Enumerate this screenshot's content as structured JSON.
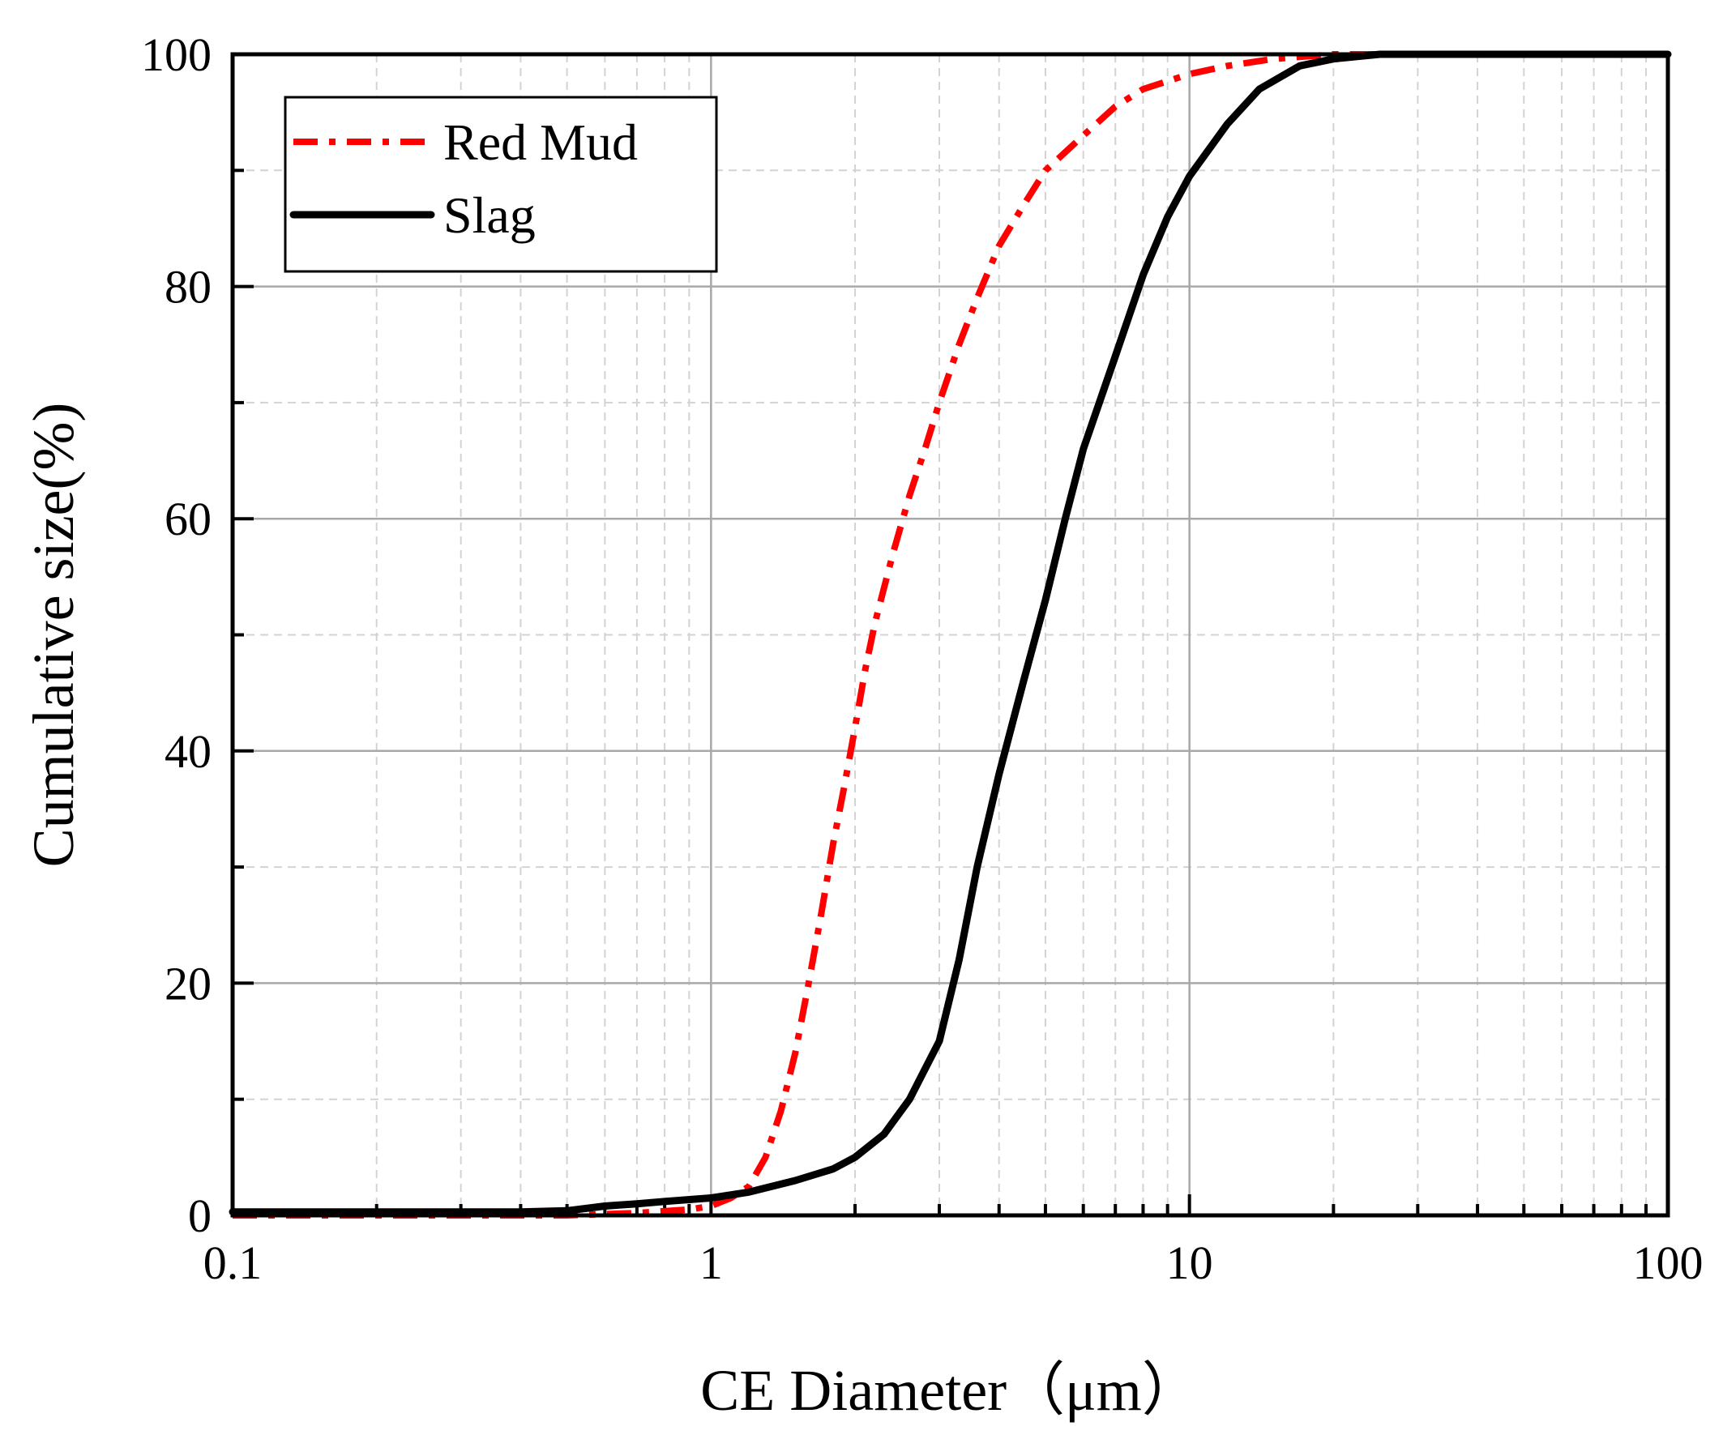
{
  "chart_data": {
    "type": "line",
    "title": "",
    "xlabel": "CE Diameter（μm）",
    "ylabel": "Cumulative size(%)",
    "xscale": "log",
    "xlim": [
      0.1,
      100
    ],
    "ylim": [
      0,
      100
    ],
    "xticks": [
      0.1,
      1,
      10,
      100
    ],
    "xtick_labels": [
      "0.1",
      "1",
      "10",
      "100"
    ],
    "yticks": [
      0,
      20,
      40,
      60,
      80,
      100
    ],
    "ytick_labels": [
      "0",
      "20",
      "40",
      "60",
      "80",
      "100"
    ],
    "grid": true,
    "legend_position": "top-left",
    "series": [
      {
        "name": "Red Mud",
        "color": "#ff0000",
        "linestyle": "dash-dot",
        "x": [
          0.1,
          0.3,
          0.5,
          0.7,
          0.9,
          1.0,
          1.1,
          1.2,
          1.3,
          1.4,
          1.5,
          1.6,
          1.7,
          1.8,
          1.9,
          2.0,
          2.1,
          2.2,
          2.4,
          2.6,
          2.8,
          3.0,
          3.3,
          3.6,
          4.0,
          4.5,
          5.0,
          6.0,
          7.0,
          8.0,
          10.0,
          12.0,
          15.0,
          20.0,
          30.0,
          50.0,
          100.0
        ],
        "y": [
          0,
          0,
          0,
          0.2,
          0.5,
          0.8,
          1.5,
          2.5,
          5,
          9,
          14,
          20,
          26,
          32,
          37,
          42,
          47,
          51,
          57,
          62,
          66,
          70,
          75,
          79,
          83.5,
          87,
          90,
          93,
          95.5,
          97,
          98.3,
          99,
          99.6,
          100,
          100,
          100,
          100
        ]
      },
      {
        "name": "Slag",
        "color": "#000000",
        "linestyle": "solid",
        "x": [
          0.1,
          0.2,
          0.3,
          0.4,
          0.5,
          0.6,
          0.7,
          0.8,
          1.0,
          1.2,
          1.5,
          1.8,
          2.0,
          2.3,
          2.6,
          3.0,
          3.3,
          3.6,
          4.0,
          4.5,
          5.0,
          5.5,
          6.0,
          7.0,
          8.0,
          9.0,
          10.0,
          12.0,
          14.0,
          17.0,
          20.0,
          25.0,
          30.0,
          50.0,
          100.0
        ],
        "y": [
          0.3,
          0.3,
          0.3,
          0.3,
          0.4,
          0.8,
          1.0,
          1.2,
          1.5,
          2.0,
          3.0,
          4.0,
          5.0,
          7.0,
          10.0,
          15.0,
          22.0,
          30.0,
          38.0,
          46.0,
          53.0,
          60.0,
          66.0,
          74.0,
          81.0,
          86.0,
          89.5,
          94.0,
          97.0,
          99.0,
          99.6,
          100.0,
          100.0,
          100.0,
          100.0
        ]
      }
    ]
  }
}
